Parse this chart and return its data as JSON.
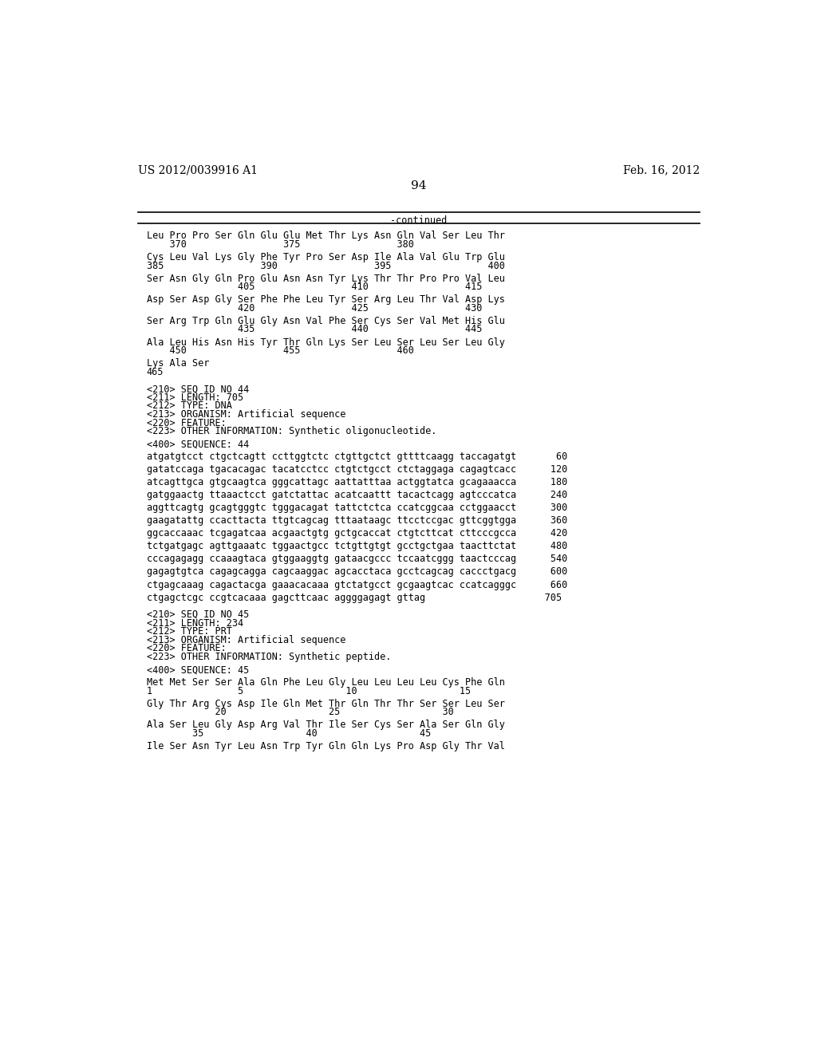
{
  "header_left": "US 2012/0039916 A1",
  "header_right": "Feb. 16, 2012",
  "page_number": "94",
  "continued_label": "-continued",
  "background_color": "#ffffff",
  "text_color": "#000000",
  "font_size_header": 10.0,
  "font_size_page": 11.0,
  "font_size_body": 8.5,
  "content_lines": [
    {
      "text": "Leu Pro Pro Ser Gln Glu Glu Met Thr Lys Asn Gln Val Ser Leu Thr",
      "type": "seq"
    },
    {
      "text": "    370                 375                 380",
      "type": "num"
    },
    {
      "text": "",
      "type": "blank"
    },
    {
      "text": "Cys Leu Val Lys Gly Phe Tyr Pro Ser Asp Ile Ala Val Glu Trp Glu",
      "type": "seq"
    },
    {
      "text": "385                 390                 395                 400",
      "type": "num"
    },
    {
      "text": "",
      "type": "blank"
    },
    {
      "text": "Ser Asn Gly Gln Pro Glu Asn Asn Tyr Lys Thr Thr Pro Pro Val Leu",
      "type": "seq"
    },
    {
      "text": "                405                 410                 415",
      "type": "num"
    },
    {
      "text": "",
      "type": "blank"
    },
    {
      "text": "Asp Ser Asp Gly Ser Phe Phe Leu Tyr Ser Arg Leu Thr Val Asp Lys",
      "type": "seq"
    },
    {
      "text": "                420                 425                 430",
      "type": "num"
    },
    {
      "text": "",
      "type": "blank"
    },
    {
      "text": "Ser Arg Trp Gln Glu Gly Asn Val Phe Ser Cys Ser Val Met His Glu",
      "type": "seq"
    },
    {
      "text": "                435                 440                 445",
      "type": "num"
    },
    {
      "text": "",
      "type": "blank"
    },
    {
      "text": "Ala Leu His Asn His Tyr Thr Gln Lys Ser Leu Ser Leu Ser Leu Gly",
      "type": "seq"
    },
    {
      "text": "    450                 455                 460",
      "type": "num"
    },
    {
      "text": "",
      "type": "blank"
    },
    {
      "text": "Lys Ala Ser",
      "type": "seq"
    },
    {
      "text": "465",
      "type": "num"
    },
    {
      "text": "",
      "type": "blank"
    },
    {
      "text": "",
      "type": "blank"
    },
    {
      "text": "<210> SEQ ID NO 44",
      "type": "meta"
    },
    {
      "text": "<211> LENGTH: 705",
      "type": "meta"
    },
    {
      "text": "<212> TYPE: DNA",
      "type": "meta"
    },
    {
      "text": "<213> ORGANISM: Artificial sequence",
      "type": "meta"
    },
    {
      "text": "<220> FEATURE:",
      "type": "meta"
    },
    {
      "text": "<223> OTHER INFORMATION: Synthetic oligonucleotide.",
      "type": "meta"
    },
    {
      "text": "",
      "type": "blank"
    },
    {
      "text": "<400> SEQUENCE: 44",
      "type": "meta"
    },
    {
      "text": "",
      "type": "blank"
    },
    {
      "text": "atgatgtcct ctgctcagtt ccttggtctc ctgttgctct gttttcaagg taccagatgt       60",
      "type": "dna"
    },
    {
      "text": "",
      "type": "blank"
    },
    {
      "text": "gatatccaga tgacacagac tacatcctcc ctgtctgcct ctctaggaga cagagtcacc      120",
      "type": "dna"
    },
    {
      "text": "",
      "type": "blank"
    },
    {
      "text": "atcagttgca gtgcaagtca gggcattagc aattatttaa actggtatca gcagaaacca      180",
      "type": "dna"
    },
    {
      "text": "",
      "type": "blank"
    },
    {
      "text": "gatggaactg ttaaactcct gatctattac acatcaattt tacactcagg agtcccatca      240",
      "type": "dna"
    },
    {
      "text": "",
      "type": "blank"
    },
    {
      "text": "aggttcagtg gcagtgggtc tgggacagat tattctctca ccatcggcaa cctggaacct      300",
      "type": "dna"
    },
    {
      "text": "",
      "type": "blank"
    },
    {
      "text": "gaagatattg ccacttacta ttgtcagcag tttaataagc ttcctccgac gttcggtgga      360",
      "type": "dna"
    },
    {
      "text": "",
      "type": "blank"
    },
    {
      "text": "ggcaccaaac tcgagatcaa acgaactgtg gctgcaccat ctgtcttcat cttcccgcca      420",
      "type": "dna"
    },
    {
      "text": "",
      "type": "blank"
    },
    {
      "text": "tctgatgagc agttgaaatc tggaactgcc tctgttgtgt gcctgctgaa taacttctat      480",
      "type": "dna"
    },
    {
      "text": "",
      "type": "blank"
    },
    {
      "text": "cccagagagg ccaaagtaca gtggaaggtg gataacgccc tccaatcggg taactcccag      540",
      "type": "dna"
    },
    {
      "text": "",
      "type": "blank"
    },
    {
      "text": "gagagtgtca cagagcagga cagcaaggac agcacctaca gcctcagcag caccctgacg      600",
      "type": "dna"
    },
    {
      "text": "",
      "type": "blank"
    },
    {
      "text": "ctgagcaaag cagactacga gaaacacaaa gtctatgcct gcgaagtcac ccatcagggc      660",
      "type": "dna"
    },
    {
      "text": "",
      "type": "blank"
    },
    {
      "text": "ctgagctcgc ccgtcacaaa gagcttcaac aggggagagt gttag                     705",
      "type": "dna"
    },
    {
      "text": "",
      "type": "blank"
    },
    {
      "text": "",
      "type": "blank"
    },
    {
      "text": "<210> SEQ ID NO 45",
      "type": "meta"
    },
    {
      "text": "<211> LENGTH: 234",
      "type": "meta"
    },
    {
      "text": "<212> TYPE: PRT",
      "type": "meta"
    },
    {
      "text": "<213> ORGANISM: Artificial sequence",
      "type": "meta"
    },
    {
      "text": "<220> FEATURE:",
      "type": "meta"
    },
    {
      "text": "<223> OTHER INFORMATION: Synthetic peptide.",
      "type": "meta"
    },
    {
      "text": "",
      "type": "blank"
    },
    {
      "text": "<400> SEQUENCE: 45",
      "type": "meta"
    },
    {
      "text": "",
      "type": "blank"
    },
    {
      "text": "Met Met Ser Ser Ala Gln Phe Leu Gly Leu Leu Leu Leu Cys Phe Gln",
      "type": "seq"
    },
    {
      "text": "1               5                  10                  15",
      "type": "num"
    },
    {
      "text": "",
      "type": "blank"
    },
    {
      "text": "Gly Thr Arg Cys Asp Ile Gln Met Thr Gln Thr Thr Ser Ser Leu Ser",
      "type": "seq"
    },
    {
      "text": "            20                  25                  30",
      "type": "num"
    },
    {
      "text": "",
      "type": "blank"
    },
    {
      "text": "Ala Ser Leu Gly Asp Arg Val Thr Ile Ser Cys Ser Ala Ser Gln Gly",
      "type": "seq"
    },
    {
      "text": "        35                  40                  45",
      "type": "num"
    },
    {
      "text": "",
      "type": "blank"
    },
    {
      "text": "Ile Ser Asn Tyr Leu Asn Trp Tyr Gln Gln Lys Pro Asp Gly Thr Val",
      "type": "seq"
    }
  ]
}
